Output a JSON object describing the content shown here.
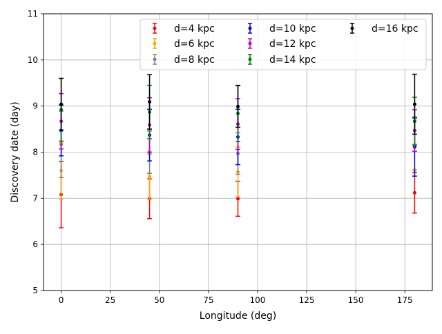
{
  "chart_data": {
    "type": "scatter",
    "title": "",
    "xlabel": "Longitude (deg)",
    "ylabel": "Discovery date (day)",
    "xlim": [
      -9,
      189
    ],
    "ylim": [
      5,
      11
    ],
    "xticks": [
      0,
      25,
      50,
      75,
      100,
      125,
      150,
      175
    ],
    "yticks": [
      5,
      6,
      7,
      8,
      9,
      10,
      11
    ],
    "grid": true,
    "legend_position": "top-right",
    "legend_columns": 3,
    "x": [
      0,
      45,
      90,
      180
    ],
    "series": [
      {
        "name": "d=4 kpc",
        "color": "#ff0000",
        "y": [
          7.08,
          6.99,
          6.99,
          7.12
        ],
        "yerr": [
          0.72,
          0.43,
          0.38,
          0.44
        ]
      },
      {
        "name": "d=6 kpc",
        "color": "#ffa500",
        "y": [
          7.6,
          7.47,
          7.57,
          7.61
        ],
        "yerr": [
          0.62,
          0.49,
          0.54,
          0.0
        ]
      },
      {
        "name": "d=8 kpc",
        "color": "#808080",
        "y": [
          8.17,
          8.0,
          7.97,
          8.47
        ],
        "yerr": [
          0.72,
          0.46,
          0.45,
          0.3
        ]
      },
      {
        "name": "d=10 kpc",
        "color": "#0000ff",
        "y": [
          8.47,
          8.37,
          8.33,
          8.11
        ],
        "yerr": [
          0.55,
          0.56,
          0.6,
          0.63
        ]
      },
      {
        "name": "d=12 kpc",
        "color": "#bf00bf",
        "y": [
          8.67,
          8.59,
          8.61,
          8.47
        ],
        "yerr": [
          0.6,
          0.59,
          0.55,
          0.45
        ]
      },
      {
        "name": "d=14 kpc",
        "color": "#008000",
        "y": [
          8.92,
          8.87,
          8.84,
          8.67
        ],
        "yerr": [
          0.68,
          0.58,
          0.61,
          0.52
        ]
      },
      {
        "name": "d=16 kpc",
        "color": "#000000",
        "y": [
          9.04,
          9.09,
          8.99,
          9.04
        ],
        "yerr": [
          0.56,
          0.59,
          0.45,
          0.65
        ]
      }
    ]
  }
}
